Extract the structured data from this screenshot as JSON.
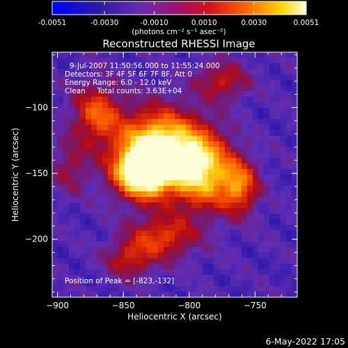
{
  "chart_data": {
    "type": "heatmap",
    "title": "Reconstructed RHESSI Image",
    "xlabel": "Heliocentric X (arcsec)",
    "ylabel": "Heliocentric Y (arcsec)",
    "xlim": [
      -904,
      -718
    ],
    "ylim": [
      -244,
      -58
    ],
    "x_ticks": [
      -900,
      -850,
      -800,
      -750
    ],
    "y_ticks": [
      -100,
      -150,
      -200
    ],
    "colorbar": {
      "range": [
        -0.0051,
        0.0051
      ],
      "ticks": [
        "-0.0051",
        "-0.0030",
        "-0.0010",
        "0.0010",
        "0.0030",
        "0.0051"
      ],
      "unit_label": "(photons cm⁻² s⁻¹ asec⁻²)",
      "colormap": [
        "#0000ff",
        "#3a1c9e",
        "#6a2bb0",
        "#9a1f7a",
        "#d0101a",
        "#ff6a00",
        "#ffd000",
        "#ffffc8"
      ]
    },
    "annotations": {
      "time_range": "9-Jul-2007 11:50:56.000 to 11:55:24.000",
      "detectors": "Detectors: 3F 4F 5F 6F 7F 8F, Att 0",
      "energy": "Energy Range: 6.0 - 12.0 keV",
      "clean": "Clean     Total counts: 3.63E+04",
      "peak": "Position of Peak = [-823,-132]"
    },
    "peak": [
      -823,
      -132
    ],
    "footer_date": "6-May-2022 17:05"
  }
}
